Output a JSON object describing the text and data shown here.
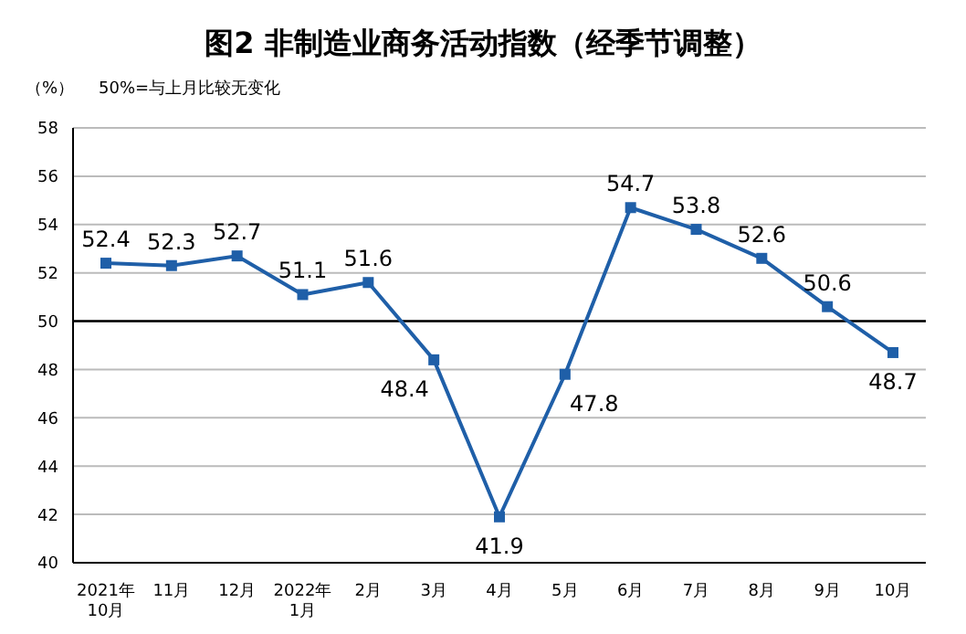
{
  "chart_data": {
    "type": "line",
    "title": "图2 非制造业商务活动指数（经季节调整）",
    "ylabel": "（%）",
    "annotations": [
      "50%=与上月比较无变化"
    ],
    "categories": [
      "2021年\n10月",
      "11月",
      "12月",
      "2022年\n1月",
      "2月",
      "3月",
      "4月",
      "5月",
      "6月",
      "7月",
      "8月",
      "9月",
      "10月"
    ],
    "series": [
      {
        "color": "#1f5fa8",
        "values": [
          52.4,
          52.3,
          52.7,
          51.1,
          51.6,
          48.4,
          41.9,
          47.8,
          54.7,
          53.8,
          52.6,
          50.6,
          48.7
        ]
      }
    ],
    "ylim": [
      40,
      58
    ],
    "yticks": [
      40,
      42,
      44,
      46,
      48,
      50,
      52,
      54,
      56,
      58
    ],
    "grid": "y",
    "marker": "square",
    "line_style": "solid",
    "data_labels": true,
    "ref_lines": [
      {
        "axis": "y",
        "value": 50,
        "color": "#000000"
      }
    ]
  }
}
